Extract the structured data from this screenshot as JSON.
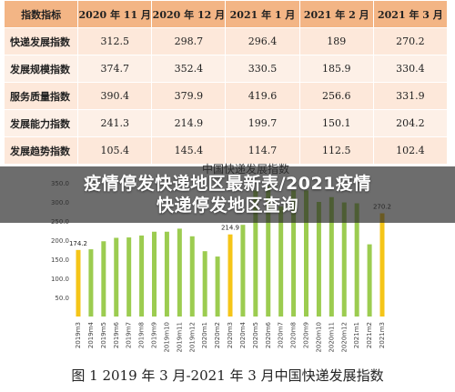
{
  "table": {
    "headers": [
      "指数指标",
      "2020 年 11 月",
      "2020 年 12 月",
      "2021 年 1 月",
      "2021 年 2 月",
      "2021 年 3 月"
    ],
    "rows": [
      {
        "label": "快递发展指数",
        "values": [
          "312.5",
          "298.7",
          "296.4",
          "189",
          "270.2"
        ]
      },
      {
        "label": "发展规模指数",
        "values": [
          "374.7",
          "352.4",
          "330.5",
          "185.9",
          "330.4"
        ]
      },
      {
        "label": "服务质量指数",
        "values": [
          "390.4",
          "379.9",
          "419.6",
          "256.6",
          "331.9"
        ]
      },
      {
        "label": "发展能力指数",
        "values": [
          "241.3",
          "214.9",
          "199.7",
          "150.1",
          "204.2"
        ]
      },
      {
        "label": "发展趋势指数",
        "values": [
          "105.4",
          "145.4",
          "114.7",
          "112.5",
          "102.4"
        ]
      }
    ]
  },
  "chart_data": {
    "type": "bar",
    "title": "中国快递发展指数",
    "categories": [
      "2019m3",
      "2019m4",
      "2019m5",
      "2019m6",
      "2019m7",
      "2019m8",
      "2019m9",
      "2019m10",
      "2019m11",
      "2019m12",
      "2020m1",
      "2020m2",
      "2020m3",
      "2020m4",
      "2020m5",
      "2020m6",
      "2020m7",
      "2020m8",
      "2020m9",
      "2020m10",
      "2020m11",
      "2020m12",
      "2021m1",
      "2021m2",
      "2021m3"
    ],
    "values": [
      174.2,
      176,
      197,
      206,
      207,
      212,
      222,
      222,
      230,
      210,
      171,
      157,
      214.9,
      240,
      330,
      340,
      288,
      330,
      330,
      300,
      312.5,
      298.7,
      296.4,
      189,
      270.2
    ],
    "bar_colors": [
      "#f5c518",
      "#9ccc50",
      "#9ccc50",
      "#9ccc50",
      "#9ccc50",
      "#9ccc50",
      "#9ccc50",
      "#9ccc50",
      "#9ccc50",
      "#9ccc50",
      "#9ccc50",
      "#9ccc50",
      "#f5c518",
      "#9ccc50",
      "#9ccc50",
      "#9ccc50",
      "#9ccc50",
      "#9ccc50",
      "#9ccc50",
      "#9ccc50",
      "#9ccc50",
      "#9ccc50",
      "#9ccc50",
      "#9ccc50",
      "#f5c518"
    ],
    "data_labels": {
      "0": "174.2",
      "12": "214.9",
      "24": "270.2"
    },
    "yticks": [
      "50.0",
      "100.0",
      "150.0",
      "200.0",
      "250.0",
      "300.0",
      "350.0"
    ],
    "ylim": [
      0,
      400
    ],
    "grid": false
  },
  "overlay": {
    "line1": "疫情停发快递地区最新表/2021疫情",
    "line2": "快递停发地区查询"
  },
  "caption": "图 1  2019 年 3 月-2021 年 3 月中国快递发展指数"
}
